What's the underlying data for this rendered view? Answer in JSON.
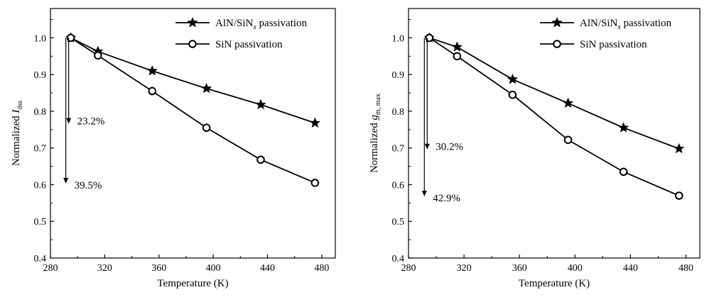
{
  "chart_data": [
    {
      "type": "line",
      "xlabel": "Temperature (K)",
      "ylabel": {
        "main": "Normalized ",
        "var": "I",
        "sub": "dss"
      },
      "xlim": [
        280,
        490
      ],
      "ylim": [
        0.4,
        1.08
      ],
      "xticks": [
        280,
        320,
        360,
        400,
        440,
        480
      ],
      "yticks": [
        0.4,
        0.5,
        0.6,
        0.7,
        0.8,
        0.9,
        1.0
      ],
      "legend_position": "top-right",
      "series": [
        {
          "name": "AlN/SiN",
          "name_sub": "x",
          "name_suffix": " passivation",
          "marker": "star",
          "x": [
            295,
            315,
            355,
            395,
            435,
            475
          ],
          "y": [
            1.0,
            0.963,
            0.91,
            0.862,
            0.818,
            0.768
          ]
        },
        {
          "name": "SiN passivation",
          "marker": "circle",
          "x": [
            295,
            315,
            355,
            395,
            435,
            475
          ],
          "y": [
            1.0,
            0.952,
            0.855,
            0.755,
            0.668,
            0.605
          ]
        }
      ],
      "annotations": [
        {
          "text": "23.2%",
          "x": 295,
          "y_from": 1.0,
          "y_to": 0.768
        },
        {
          "text": "39.5%",
          "x": 295,
          "y_from": 1.0,
          "y_to": 0.605
        }
      ]
    },
    {
      "type": "line",
      "xlabel": "Temperature (K)",
      "ylabel": {
        "main": "Normalized ",
        "var": "g",
        "sub": "m, max"
      },
      "xlim": [
        280,
        490
      ],
      "ylim": [
        0.4,
        1.08
      ],
      "xticks": [
        280,
        320,
        360,
        400,
        440,
        480
      ],
      "yticks": [
        0.4,
        0.5,
        0.6,
        0.7,
        0.8,
        0.9,
        1.0
      ],
      "legend_position": "top-right",
      "series": [
        {
          "name": "AlN/SiN",
          "name_sub": "x",
          "name_suffix": " passivation",
          "marker": "star",
          "x": [
            295,
            315,
            355,
            395,
            435,
            475
          ],
          "y": [
            1.0,
            0.975,
            0.887,
            0.822,
            0.755,
            0.698
          ]
        },
        {
          "name": "SiN passivation",
          "marker": "circle",
          "x": [
            295,
            315,
            355,
            395,
            435,
            475
          ],
          "y": [
            1.0,
            0.95,
            0.845,
            0.722,
            0.635,
            0.57
          ]
        }
      ],
      "annotations": [
        {
          "text": "30.2%",
          "x": 295,
          "y_from": 1.0,
          "y_to": 0.698
        },
        {
          "text": "42.9%",
          "x": 295,
          "y_from": 1.0,
          "y_to": 0.57
        }
      ]
    }
  ]
}
